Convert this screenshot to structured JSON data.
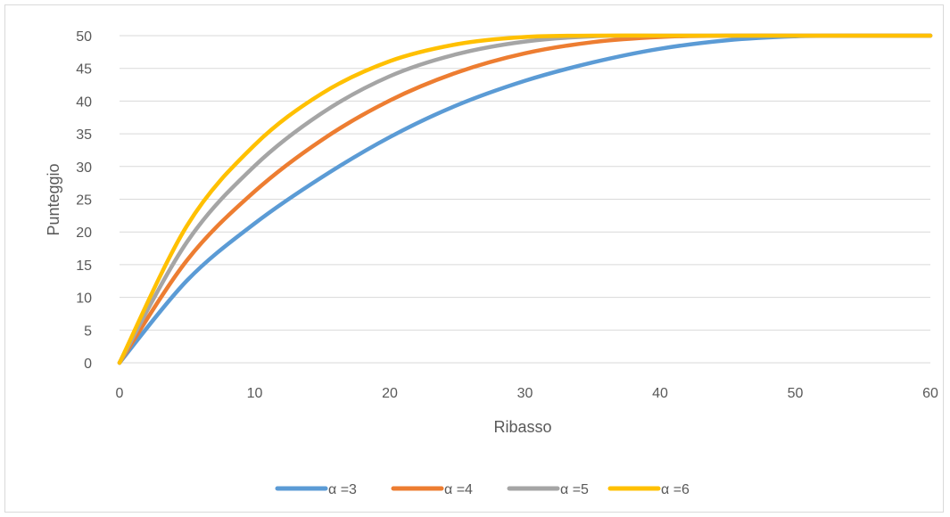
{
  "chart_data": {
    "type": "line",
    "title": "",
    "xlabel": "Ribasso",
    "ylabel": "Punteggio",
    "xlim": [
      0,
      60
    ],
    "ylim": [
      0,
      50
    ],
    "x_ticks": [
      0,
      10,
      20,
      30,
      40,
      50,
      60
    ],
    "y_ticks": [
      0,
      5,
      10,
      15,
      20,
      25,
      30,
      35,
      40,
      45,
      50
    ],
    "grid": "horizontal",
    "legend_position": "bottom",
    "x": [
      0,
      5,
      10,
      15,
      20,
      25,
      30,
      35,
      40,
      45,
      50,
      55,
      60
    ],
    "series": [
      {
        "name": "α =3",
        "color": "#5B9BD5",
        "values": [
          0,
          12.6,
          21.3,
          28.4,
          34.5,
          39.4,
          43.1,
          45.9,
          48.0,
          49.3,
          49.9,
          50.0,
          50.0
        ]
      },
      {
        "name": "α =4",
        "color": "#ED7D31",
        "values": [
          0,
          15.7,
          26.2,
          34.1,
          40.1,
          44.4,
          47.3,
          49.0,
          49.8,
          50.0,
          50.0,
          50.0,
          50.0
        ]
      },
      {
        "name": "α =5",
        "color": "#A5A5A5",
        "values": [
          0,
          18.5,
          30.1,
          38.2,
          43.8,
          47.2,
          49.1,
          49.9,
          50.0,
          50.0,
          50.0,
          50.0,
          50.0
        ]
      },
      {
        "name": "α =6",
        "color": "#FFC000",
        "values": [
          0,
          21.0,
          33.3,
          41.2,
          46.1,
          48.7,
          49.8,
          50.0,
          50.0,
          50.0,
          50.0,
          50.0,
          50.0
        ]
      }
    ]
  }
}
